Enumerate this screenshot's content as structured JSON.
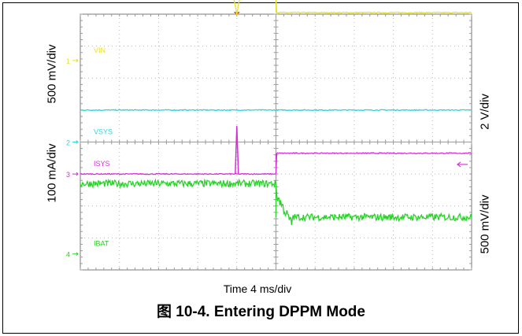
{
  "chart_data": {
    "type": "line",
    "xlabel": "Time 4 ms/div",
    "x_divisions": 10,
    "y_divisions": 8,
    "event_time_div": 5,
    "y_axis_labels": {
      "left_top": "500 mV/div",
      "left_bottom": "100 mA/div",
      "right_top": "2 V/div",
      "right_bottom": "500 mV/div"
    },
    "series": [
      {
        "name": "VIN",
        "marker": "1",
        "color": "#e5e32b",
        "scale": "500 mV/div",
        "ground_div": 6.55,
        "level_before_div": 2.0,
        "level_after_div": 1.5,
        "dip": {
          "time_div": 4.0,
          "depth_div": 0.6
        }
      },
      {
        "name": "VSYS",
        "marker": "2",
        "color": "#2fd4dc",
        "scale": "2 V/div",
        "ground_div": 4.0,
        "level_before_div": 1.0,
        "level_after_div": 1.0
      },
      {
        "name": "ISYS",
        "marker": "3",
        "color": "#d62fd6",
        "scale": "100 mA/div",
        "ground_div": 3.0,
        "level_before_div": 0.0,
        "level_after_div": 0.65,
        "spike": {
          "time_div": 4.0,
          "height_div": 1.5
        }
      },
      {
        "name": "IBAT",
        "marker": "4",
        "color": "#27d327",
        "scale": "500 mV/div",
        "ground_div": 0.5,
        "level_before_div": 2.2,
        "level_after_div": 1.15,
        "noise_div": 0.22
      }
    ]
  },
  "caption": "图 10-4. Entering DPPM Mode"
}
